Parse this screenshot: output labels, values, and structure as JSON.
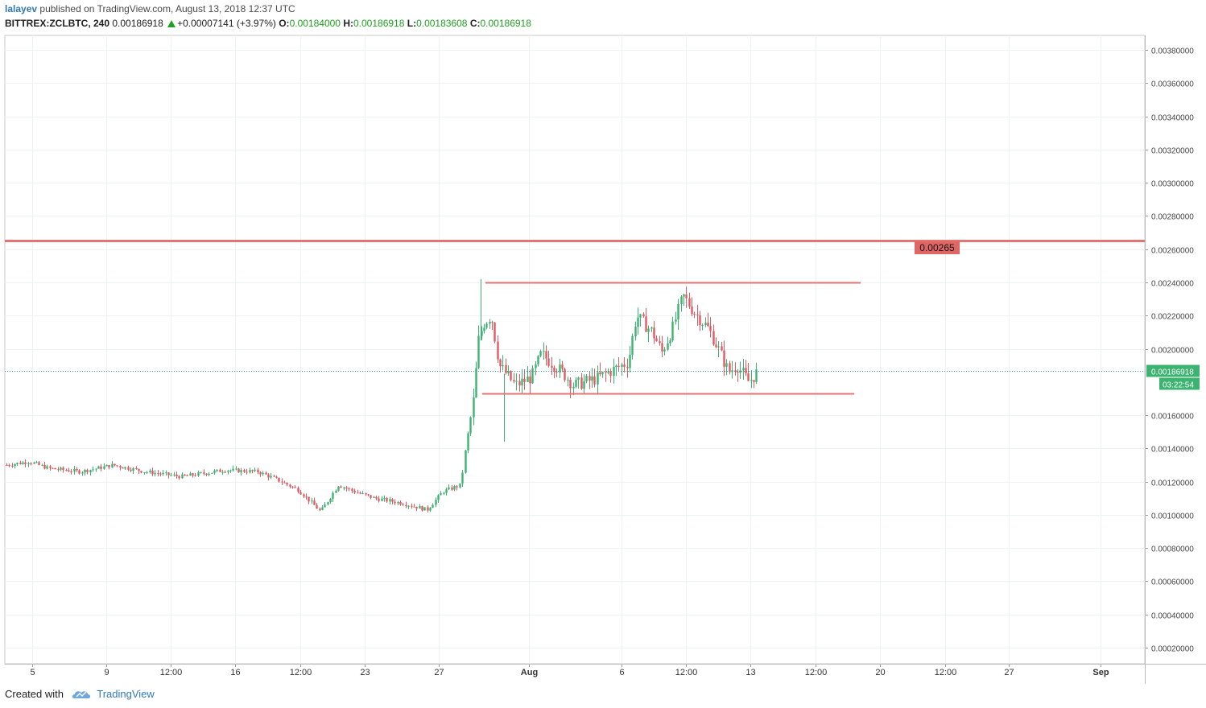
{
  "header": {
    "author": "lalayev",
    "published_text": "published on TradingView.com, August 13, 2018 12:37 UTC",
    "symbol": "BITTREX:ZCLBTC, 240",
    "last": "0.00186918",
    "change": "+0.00007141 (+3.97%)",
    "o_label": "O:",
    "o_value": "0.00184000",
    "h_label": "H:",
    "h_value": "0.00186918",
    "l_label": "L:",
    "l_value": "0.00183608",
    "c_label": "C:",
    "c_value": "0.00186918"
  },
  "footer": {
    "created_with": "Created with",
    "brand": "TradingView"
  },
  "colors": {
    "up": "#26a69a",
    "up_body": "#3cb371",
    "down": "#e05a63",
    "level_line": "#e57373",
    "grid": "#eef2f5",
    "axis": "#555555",
    "price_tag": "#3cb371"
  },
  "icons": {
    "trend_up": "up-triangle-icon",
    "brand_logo": "tradingview-cloud-icon"
  },
  "chart_data": {
    "type": "candlestick",
    "y_axis": {
      "min": 0.0001,
      "max": 0.0039,
      "ticks": [
        "0.00380000",
        "0.00360000",
        "0.00340000",
        "0.00320000",
        "0.00300000",
        "0.00280000",
        "0.00260000",
        "0.00240000",
        "0.00220000",
        "0.00200000",
        "0.00160000",
        "0.00140000",
        "0.00120000",
        "0.00100000",
        "0.00080000",
        "0.00060000",
        "0.00040000",
        "0.00020000"
      ],
      "tick_values": [
        0.0038,
        0.0036,
        0.0034,
        0.0032,
        0.003,
        0.0028,
        0.0026,
        0.0024,
        0.0022,
        0.002,
        0.0016,
        0.0014,
        0.0012,
        0.001,
        0.0008,
        0.0006,
        0.0004,
        0.0002
      ]
    },
    "x_axis": {
      "labels": [
        "5",
        "9",
        "12:00",
        "16",
        "12:00",
        "23",
        "27",
        "Aug",
        "6",
        "12:00",
        "13",
        "12:00",
        "20",
        "12:00",
        "27",
        "Sep"
      ],
      "bold": [
        "Aug",
        "Sep"
      ]
    },
    "current_price": {
      "value": 0.00186918,
      "label": "0.00186918",
      "countdown": "03:22:54"
    },
    "resistance_label": "0.00265",
    "levels": [
      {
        "value": 0.00265,
        "label": "0.00265",
        "span": "full"
      },
      {
        "value": 0.0024,
        "label": "",
        "span": "range"
      },
      {
        "value": 0.00173,
        "label": "",
        "span": "range"
      }
    ],
    "key_prices": [
      {
        "phase": "early-July plateau",
        "price": 0.00128
      },
      {
        "phase": "late-July low",
        "price": 0.00101
      },
      {
        "phase": "spike high",
        "price": 0.00242
      },
      {
        "phase": "range high",
        "price": 0.00238
      },
      {
        "phase": "range low",
        "price": 0.00173
      },
      {
        "phase": "last close",
        "price": 0.00186918
      }
    ],
    "grid": true
  }
}
